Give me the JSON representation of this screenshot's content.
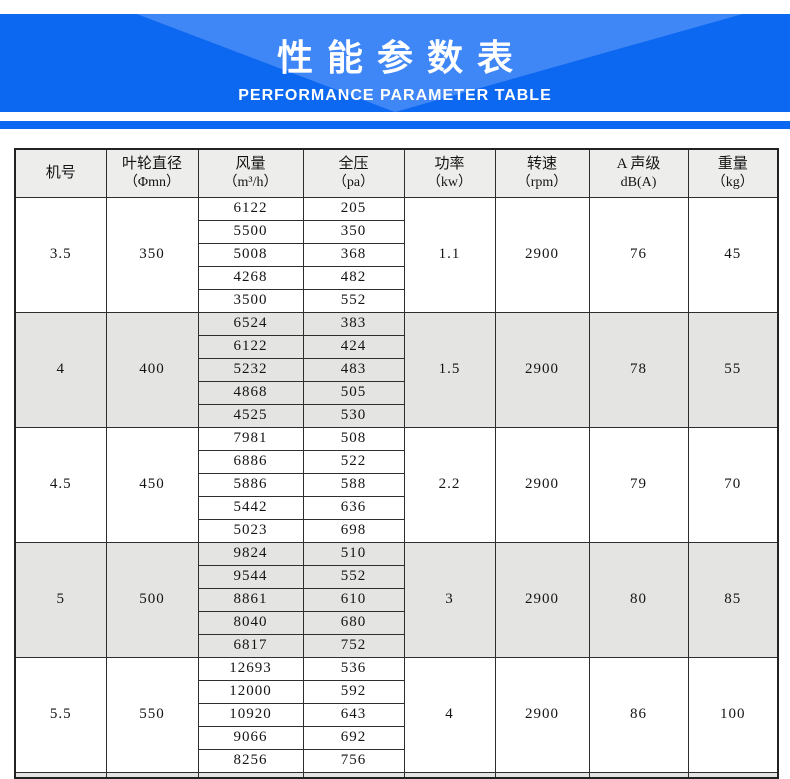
{
  "banner": {
    "title": "性能参数表",
    "subtitle": "PERFORMANCE PARAMETER TABLE",
    "blue": "#0c68f0",
    "light_blue": "#3f86f7"
  },
  "chart_data": {
    "type": "table",
    "title": "性能参数表",
    "subtitle": "PERFORMANCE PARAMETER TABLE",
    "columns": [
      {
        "label": "机号",
        "unit": ""
      },
      {
        "label": "叶轮直径",
        "unit": "（Φmn）"
      },
      {
        "label": "风量",
        "unit": "（m³/h）"
      },
      {
        "label": "全压",
        "unit": "（pa）"
      },
      {
        "label": "功率",
        "unit": "（kw）"
      },
      {
        "label": "转速",
        "unit": "（rpm）"
      },
      {
        "label": "A 声级",
        "unit": "dB(A)"
      },
      {
        "label": "重量",
        "unit": "（kg）"
      }
    ],
    "groups": [
      {
        "model": "3.5",
        "diameter": "350",
        "power": "1.1",
        "speed": "2900",
        "noise": "76",
        "weight": "45",
        "shaded": false,
        "rows": [
          [
            "6122",
            "205"
          ],
          [
            "5500",
            "350"
          ],
          [
            "5008",
            "368"
          ],
          [
            "4268",
            "482"
          ],
          [
            "3500",
            "552"
          ]
        ]
      },
      {
        "model": "4",
        "diameter": "400",
        "power": "1.5",
        "speed": "2900",
        "noise": "78",
        "weight": "55",
        "shaded": true,
        "rows": [
          [
            "6524",
            "383"
          ],
          [
            "6122",
            "424"
          ],
          [
            "5232",
            "483"
          ],
          [
            "4868",
            "505"
          ],
          [
            "4525",
            "530"
          ]
        ]
      },
      {
        "model": "4.5",
        "diameter": "450",
        "power": "2.2",
        "speed": "2900",
        "noise": "79",
        "weight": "70",
        "shaded": false,
        "rows": [
          [
            "7981",
            "508"
          ],
          [
            "6886",
            "522"
          ],
          [
            "5886",
            "588"
          ],
          [
            "5442",
            "636"
          ],
          [
            "5023",
            "698"
          ]
        ]
      },
      {
        "model": "5",
        "diameter": "500",
        "power": "3",
        "speed": "2900",
        "noise": "80",
        "weight": "85",
        "shaded": true,
        "rows": [
          [
            "9824",
            "510"
          ],
          [
            "9544",
            "552"
          ],
          [
            "8861",
            "610"
          ],
          [
            "8040",
            "680"
          ],
          [
            "6817",
            "752"
          ]
        ]
      },
      {
        "model": "5.5",
        "diameter": "550",
        "power": "4",
        "speed": "2900",
        "noise": "86",
        "weight": "100",
        "shaded": false,
        "rows": [
          [
            "12693",
            "536"
          ],
          [
            "12000",
            "592"
          ],
          [
            "10920",
            "643"
          ],
          [
            "9066",
            "692"
          ],
          [
            "8256",
            "756"
          ]
        ]
      }
    ]
  }
}
